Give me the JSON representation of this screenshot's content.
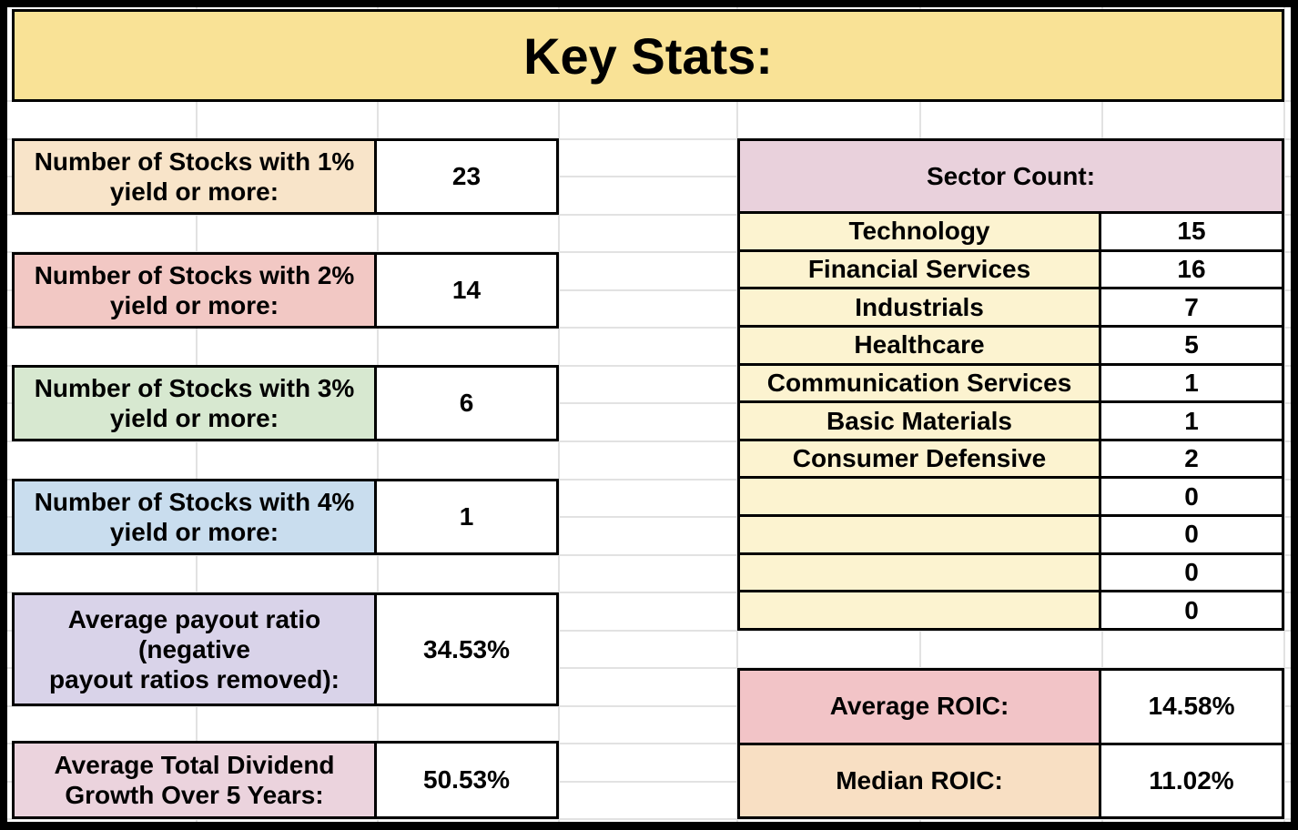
{
  "title": "Key Stats:",
  "colors": {
    "banner_bg": "#F9E296",
    "gridline": "#E2E2E2",
    "cell_border": "#000000",
    "stat1_bg": "#F8E4C9",
    "stat2_bg": "#F2C8C4",
    "stat3_bg": "#D7E8D0",
    "stat4_bg": "#C9DDEE",
    "stat5_bg": "#D9D3E9",
    "stat6_bg": "#EBD3DD",
    "sector_header_bg": "#E9D1DC",
    "sector_row_bg": "#FCF3D0",
    "avg_roic_bg": "#F2C4C7",
    "median_roic_bg": "#F8DFC3"
  },
  "left_stats": [
    {
      "label": "Number of Stocks with 1%\nyield or more:",
      "value": "23"
    },
    {
      "label": "Number of Stocks with 2%\nyield or more:",
      "value": "14"
    },
    {
      "label": "Number of Stocks with 3%\nyield or more:",
      "value": "6"
    },
    {
      "label": "Number of Stocks with 4%\nyield or more:",
      "value": "1"
    },
    {
      "label": "Average payout ratio (negative\npayout ratios removed):",
      "value": "34.53%"
    },
    {
      "label": "Average Total Dividend\nGrowth Over 5 Years:",
      "value": "50.53%"
    }
  ],
  "sector_table": {
    "header": "Sector Count:",
    "rows": [
      {
        "label": "Technology",
        "value": "15"
      },
      {
        "label": "Financial Services",
        "value": "16"
      },
      {
        "label": "Industrials",
        "value": "7"
      },
      {
        "label": "Healthcare",
        "value": "5"
      },
      {
        "label": "Communication Services",
        "value": "1"
      },
      {
        "label": "Basic Materials",
        "value": "1"
      },
      {
        "label": "Consumer Defensive",
        "value": "2"
      },
      {
        "label": "",
        "value": "0"
      },
      {
        "label": "",
        "value": "0"
      },
      {
        "label": "",
        "value": "0"
      },
      {
        "label": "",
        "value": "0"
      }
    ]
  },
  "roic_stats": [
    {
      "label": "Average ROIC:",
      "value": "14.58%"
    },
    {
      "label": "Median ROIC:",
      "value": "11.02%"
    }
  ]
}
